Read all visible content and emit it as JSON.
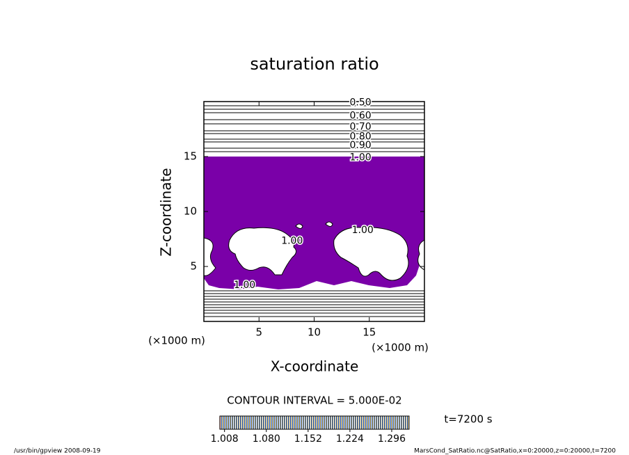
{
  "chart_data": {
    "type": "contour",
    "title": "saturation ratio",
    "x_label": "X-coordinate",
    "y_label": "Z-coordinate",
    "x_unit": "(×1000 m)",
    "y_unit": "(×1000 m)",
    "xlim": [
      0,
      20
    ],
    "ylim": [
      0,
      20
    ],
    "xticks": [
      5,
      10,
      15
    ],
    "yticks": [
      5,
      10,
      15
    ],
    "contour_interval": "CONTOUR INTERVAL = 5.000E-02",
    "time": "t=7200 s",
    "contours": [
      {
        "level": 0.5,
        "label": "0.50",
        "x": 14.2,
        "z": 19.9
      },
      {
        "level": 0.6,
        "label": "0.60",
        "x": 14.2,
        "z": 18.7
      },
      {
        "level": 0.7,
        "label": "0.70",
        "x": 14.2,
        "z": 17.7
      },
      {
        "level": 0.8,
        "label": "0.80",
        "x": 14.2,
        "z": 16.8
      },
      {
        "level": 0.9,
        "label": "0.90",
        "x": 14.2,
        "z": 16.0
      },
      {
        "level": 1.0,
        "label": "1.00",
        "x": 14.2,
        "z": 14.9
      },
      {
        "level": 1.0,
        "label": "1.00",
        "x": 8.0,
        "z": 7.3
      },
      {
        "level": 1.0,
        "label": "1.00",
        "x": 14.4,
        "z": 8.3
      },
      {
        "level": 1.0,
        "label": "1.00",
        "x": 3.7,
        "z": 3.3
      }
    ],
    "colorbar": {
      "clim": [
        1.0,
        1.326
      ],
      "ticks": [
        {
          "value": 1.008,
          "label": "1.008"
        },
        {
          "value": 1.08,
          "label": "1.080"
        },
        {
          "value": 1.152,
          "label": "1.152"
        },
        {
          "value": 1.224,
          "label": "1.224"
        },
        {
          "value": 1.296,
          "label": "1.296"
        }
      ]
    },
    "footer_left": "/usr/bin/gpview   2008-09-19",
    "footer_right": "MarsCond_SatRatio.nc@SatRatio,x=0:20000,z=0:20000,t=7200"
  }
}
